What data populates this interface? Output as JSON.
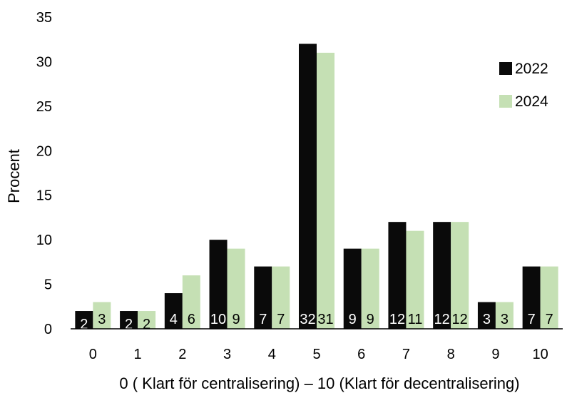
{
  "chart_data": {
    "type": "bar",
    "title": "",
    "xlabel": "0 ( Klart för  centralisering) – 10 (Klart för decentralisering)",
    "ylabel": "Procent",
    "ylim": [
      0,
      35
    ],
    "yticks": [
      "0",
      "5",
      "10",
      "15",
      "20",
      "25",
      "30",
      "35"
    ],
    "categories": [
      "0",
      "1",
      "2",
      "3",
      "4",
      "5",
      "6",
      "7",
      "8",
      "9",
      "10"
    ],
    "grid": false,
    "legend_position": "right",
    "series": [
      {
        "name": "2022",
        "color": "#0a0a0a",
        "label_color": "#ffffff",
        "values": [
          2,
          2,
          4,
          10,
          7,
          32,
          9,
          12,
          12,
          3,
          7
        ]
      },
      {
        "name": "2024",
        "color": "#c5e0b4",
        "label_color": "#000000",
        "values": [
          3,
          2,
          6,
          9,
          7,
          31,
          9,
          11,
          12,
          3,
          7
        ]
      }
    ]
  }
}
